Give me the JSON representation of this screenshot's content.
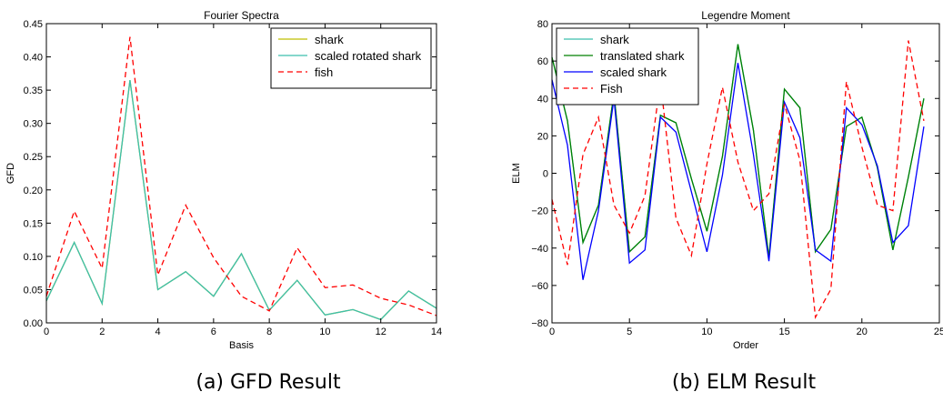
{
  "captions": [
    "(a) GFD Result",
    "(b) ELM Result"
  ],
  "chart_data": [
    {
      "type": "line",
      "title": "Fourier Spectra",
      "xlabel": "Basis",
      "ylabel": "GFD",
      "xlim": [
        0,
        14
      ],
      "ylim": [
        0,
        0.45
      ],
      "xticks": [
        0,
        2,
        4,
        6,
        8,
        10,
        12,
        14
      ],
      "xtick_labels": [
        "0",
        "2",
        "4",
        "6",
        "8",
        "10",
        "12",
        "14"
      ],
      "yticks": [
        0,
        0.05,
        0.1,
        0.15,
        0.2,
        0.25,
        0.3,
        0.35,
        0.4,
        0.45
      ],
      "ytick_labels": [
        "0.00",
        "0.05",
        "0.10",
        "0.15",
        "0.20",
        "0.25",
        "0.30",
        "0.35",
        "0.40",
        "0.45"
      ],
      "grid": false,
      "legend": "top-right",
      "x": [
        0,
        1,
        2,
        3,
        4,
        5,
        6,
        7,
        8,
        9,
        10,
        11,
        12,
        13,
        14
      ],
      "series": [
        {
          "name": "shark",
          "color": "#bfbf00",
          "dash": "solid",
          "values": [
            0.033,
            0.121,
            0.029,
            0.365,
            0.05,
            0.077,
            0.04,
            0.104,
            0.019,
            0.064,
            0.012,
            0.02,
            0.005,
            0.048,
            0.022
          ]
        },
        {
          "name": "scaled rotated shark",
          "color": "#3cbfae",
          "dash": "solid",
          "values": [
            0.033,
            0.121,
            0.029,
            0.365,
            0.05,
            0.077,
            0.04,
            0.104,
            0.019,
            0.064,
            0.012,
            0.02,
            0.005,
            0.048,
            0.022
          ]
        },
        {
          "name": "fish",
          "color": "#ff0000",
          "dash": "dashed",
          "values": [
            0.04,
            0.168,
            0.082,
            0.43,
            0.072,
            0.177,
            0.098,
            0.04,
            0.018,
            0.113,
            0.053,
            0.057,
            0.037,
            0.027,
            0.011
          ]
        }
      ]
    },
    {
      "type": "line",
      "title": "Legendre Moment",
      "xlabel": "Order",
      "ylabel": "ELM",
      "xlim": [
        0,
        25
      ],
      "ylim": [
        -80,
        80
      ],
      "xticks": [
        0,
        5,
        10,
        15,
        20,
        25
      ],
      "xtick_labels": [
        "0",
        "5",
        "10",
        "15",
        "20",
        "25"
      ],
      "yticks": [
        -80,
        -60,
        -40,
        -20,
        0,
        20,
        40,
        60,
        80
      ],
      "ytick_labels": [
        "−80",
        "−60",
        "−40",
        "−20",
        "0",
        "20",
        "40",
        "60",
        "80"
      ],
      "grid": false,
      "legend": "top-left",
      "x": [
        0,
        1,
        2,
        3,
        4,
        5,
        6,
        7,
        8,
        9,
        10,
        11,
        12,
        13,
        14,
        15,
        16,
        17,
        18,
        19,
        20,
        21,
        22,
        23,
        24
      ],
      "series": [
        {
          "name": "shark",
          "color": "#3cbfae",
          "dash": "solid",
          "values": [
            62,
            28,
            -37,
            -17,
            43,
            -42,
            -34,
            31,
            27,
            -3,
            -31,
            9,
            69,
            23,
            -45,
            45,
            35,
            -42,
            -30,
            25,
            30,
            3,
            -41,
            -2,
            40
          ]
        },
        {
          "name": "translated shark",
          "color": "#008000",
          "dash": "solid",
          "values": [
            62,
            28,
            -37,
            -17,
            43,
            -42,
            -34,
            31,
            27,
            -3,
            -31,
            9,
            69,
            23,
            -45,
            45,
            35,
            -42,
            -30,
            25,
            30,
            3,
            -41,
            -2,
            40
          ]
        },
        {
          "name": "scaled shark",
          "color": "#0000ff",
          "dash": "solid",
          "values": [
            50,
            15,
            -57,
            -20,
            40,
            -48,
            -41,
            30,
            22,
            -10,
            -42,
            -1,
            59,
            10,
            -47,
            38,
            19,
            -41,
            -47,
            35,
            26,
            4,
            -37,
            -28,
            25
          ]
        },
        {
          "name": "Fish",
          "color": "#ff0000",
          "dash": "dashed",
          "values": [
            -14,
            -49,
            10,
            30,
            -17,
            -32,
            -12,
            49,
            -24,
            -44,
            5,
            46,
            6,
            -20,
            -11,
            37,
            7,
            -77,
            -62,
            49,
            14,
            -17,
            -20,
            71,
            28
          ]
        }
      ]
    }
  ]
}
